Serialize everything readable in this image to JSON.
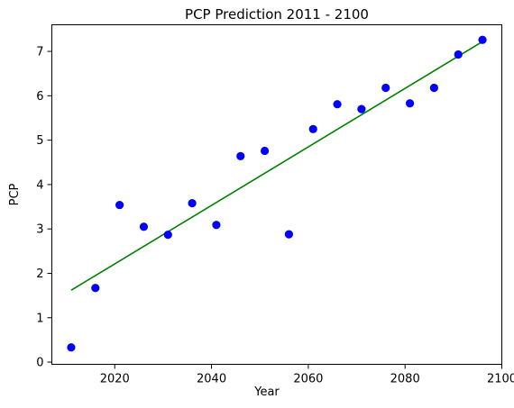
{
  "chart_data": {
    "type": "scatter",
    "title": "PCP Prediction 2011 - 2100",
    "xlabel": "Year",
    "ylabel": "PCP",
    "xlim": [
      2007,
      2100
    ],
    "ylim": [
      -0.05,
      7.6
    ],
    "xticks": [
      2020,
      2040,
      2060,
      2080,
      2100
    ],
    "yticks": [
      0,
      1,
      2,
      3,
      4,
      5,
      6,
      7
    ],
    "grid": false,
    "series": [
      {
        "kind": "scatter",
        "color": "#0000ff",
        "x": [
          2011,
          2016,
          2021,
          2026,
          2031,
          2036,
          2041,
          2046,
          2051,
          2056,
          2061,
          2066,
          2071,
          2076,
          2081,
          2086,
          2091,
          2096
        ],
        "y": [
          0.33,
          1.67,
          3.54,
          3.05,
          2.87,
          3.58,
          3.09,
          4.64,
          4.76,
          2.88,
          5.25,
          5.81,
          5.7,
          6.18,
          5.83,
          6.18,
          6.93,
          7.26
        ]
      },
      {
        "kind": "line",
        "color": "#008000",
        "x": [
          2011,
          2096
        ],
        "y": [
          1.62,
          7.22
        ]
      }
    ]
  }
}
